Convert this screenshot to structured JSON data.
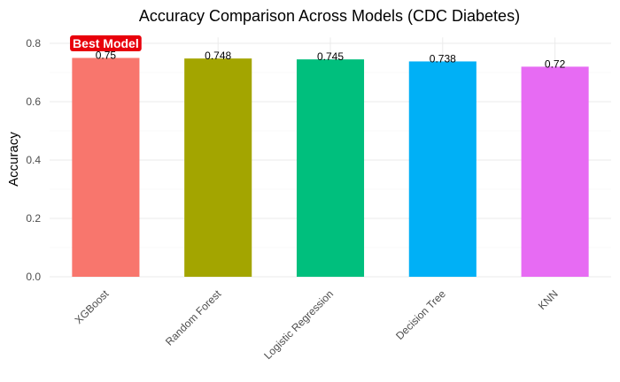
{
  "chart_data": {
    "type": "bar",
    "title": "Accuracy Comparison Across Models (CDC Diabetes)",
    "xlabel": "",
    "ylabel": "Accuracy",
    "categories": [
      "XGBoost",
      "Random Forest",
      "Logistic Regression",
      "Decision Tree",
      "KNN"
    ],
    "values": [
      0.75,
      0.748,
      0.745,
      0.738,
      0.72
    ],
    "value_labels": [
      "0.75",
      "0.748",
      "0.745",
      "0.738",
      "0.72"
    ],
    "colors": [
      "#F8766D",
      "#A3A500",
      "#00BF7D",
      "#00B0F6",
      "#E76BF3"
    ],
    "ylim": [
      0,
      0.82
    ],
    "yticks": [
      0.0,
      0.2,
      0.4,
      0.6,
      0.8
    ],
    "ytick_labels": [
      "0.0",
      "0.2",
      "0.4",
      "0.6",
      "0.8"
    ],
    "grid": true,
    "legend": "none",
    "annotation": {
      "text": "Best Model",
      "category": "XGBoost",
      "value": 0.8,
      "color": "#E8000B"
    }
  }
}
